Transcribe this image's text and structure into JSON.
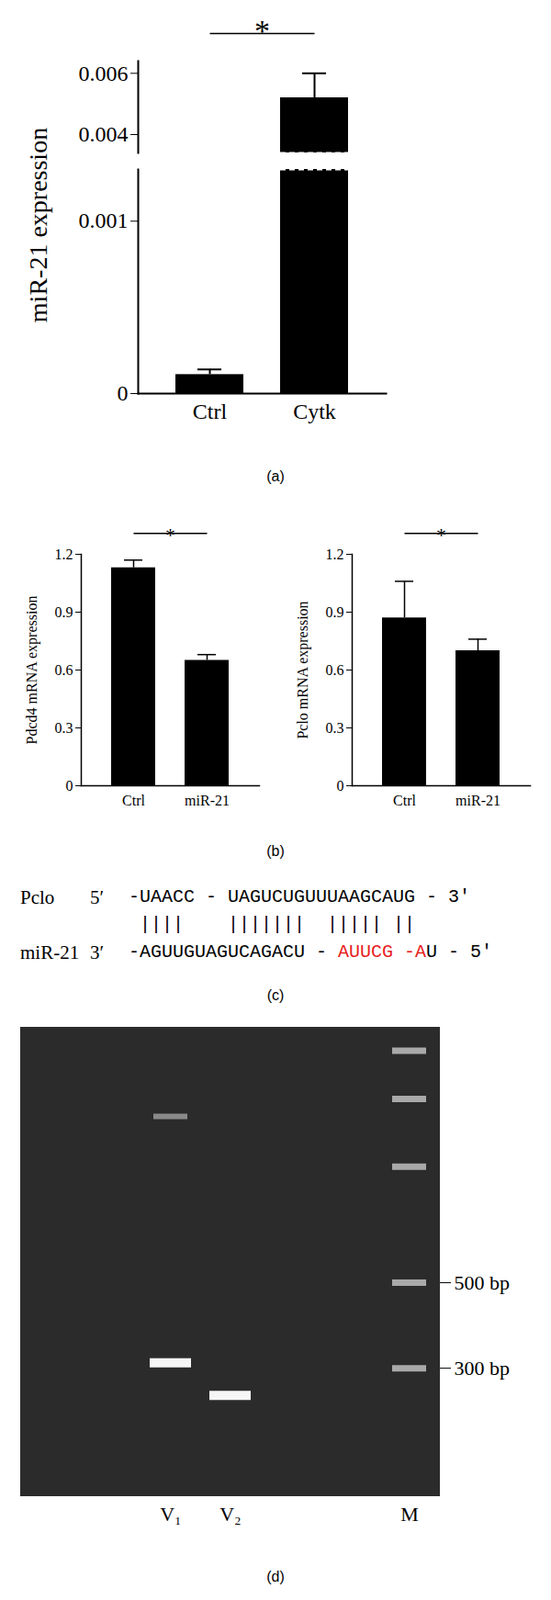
{
  "chart_data": [
    {
      "type": "bar",
      "panel_label": "(a)",
      "ylabel": "miR-21 expression",
      "categories": [
        "Ctrl",
        "Cytk"
      ],
      "values": [
        0.00011,
        0.0052
      ],
      "errors": [
        3e-05,
        0.0008
      ],
      "ylim": [
        0,
        0.0064
      ],
      "y_break": [
        0.0013,
        0.0034
      ],
      "yticks": [
        0,
        0.001,
        0.004,
        0.006
      ],
      "color": "#000000",
      "annotation": {
        "text": "*",
        "between": [
          "Ctrl",
          "Cytk"
        ]
      }
    },
    {
      "type": "bar",
      "panel_label": "(b)",
      "ylabel": "Pdcd4 mRNA expression",
      "categories": [
        "Ctrl",
        "miR-21"
      ],
      "values": [
        1.13,
        0.65
      ],
      "errors": [
        0.04,
        0.03
      ],
      "ylim": [
        0,
        1.2
      ],
      "yticks": [
        0,
        0.3,
        0.6,
        0.9,
        1.2
      ],
      "color": "#000000",
      "annotation": {
        "text": "*",
        "between": [
          "Ctrl",
          "miR-21"
        ]
      }
    },
    {
      "type": "bar",
      "ylabel": "Pclo mRNA expression",
      "categories": [
        "Ctrl",
        "miR-21"
      ],
      "values": [
        0.87,
        0.7
      ],
      "errors": [
        0.19,
        0.06
      ],
      "ylim": [
        0,
        1.2
      ],
      "yticks": [
        0,
        0.3,
        0.6,
        0.9,
        1.2
      ],
      "color": "#000000",
      "annotation": {
        "text": "*",
        "between": [
          "Ctrl",
          "miR-21"
        ]
      }
    }
  ],
  "alignment": {
    "panel_label": "(c)",
    "top_name": "Pclo",
    "top_end": "5′",
    "top": [
      {
        "text": "-UAACC - UAGUCUGUUUAAGCAUG - 3′",
        "color": "#000000"
      }
    ],
    "bonds": " ||||    |||||||  ||||| ||",
    "bottom_name": "miR-21",
    "bottom_end": "3′",
    "bottom": [
      {
        "text": "-AGUUGUAGUCAGACU - ",
        "color": "#000000"
      },
      {
        "text": "AUUCG -A",
        "color": "#e8201c"
      },
      {
        "text": "U - 5′",
        "color": "#000000"
      }
    ]
  },
  "gel": {
    "panel_label": "(d)",
    "type": "gel",
    "lanes": [
      null,
      null,
      "V₁",
      "V₂",
      null,
      null,
      "M"
    ],
    "bands": [
      {
        "lane": "V₁",
        "bp": [
          310,
          1350
        ]
      },
      {
        "lane": "V₂",
        "bp": [
          255
        ]
      },
      {
        "lane": "M",
        "bp": [
          300,
          500,
          1000,
          1500,
          2000
        ]
      }
    ],
    "log": "y",
    "ylim": [
      140,
      2300
    ],
    "yticks": [
      {
        "value": 500,
        "label": "500 bp"
      },
      {
        "value": 300,
        "label": "300 bp"
      }
    ]
  }
}
